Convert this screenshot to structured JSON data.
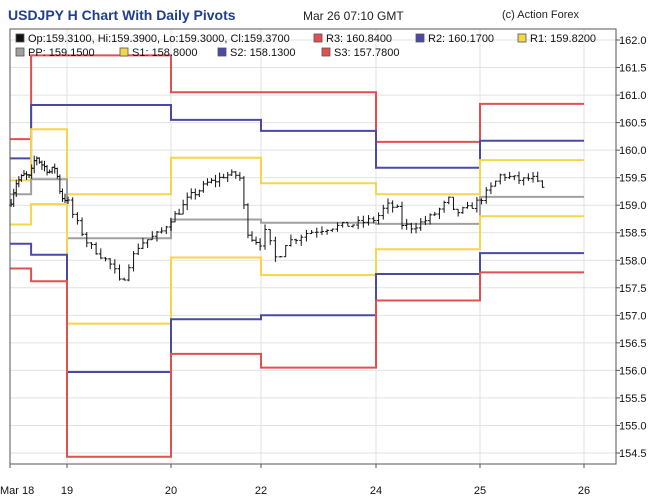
{
  "header": {
    "title": "USDJPY H Chart With Daily Pivots",
    "datetime": "Mar 26 07:10 GMT",
    "copyright": "(c) Action Forex"
  },
  "legend": [
    {
      "key": "ohlc",
      "label": "Op:159.3100, Hi:159.3900, Lo:159.3000, Cl:159.3700",
      "color": "#111111"
    },
    {
      "key": "r3",
      "label": "R3: 160.8400",
      "color": "#e05050"
    },
    {
      "key": "r2",
      "label": "R2: 160.1700",
      "color": "#4a4aa6"
    },
    {
      "key": "r1",
      "label": "R1: 159.8200",
      "color": "#f5d54a"
    },
    {
      "key": "pp",
      "label": "PP: 159.1500",
      "color": "#a0a0a0"
    },
    {
      "key": "s1",
      "label": "S1: 158.8000",
      "color": "#f5d54a"
    },
    {
      "key": "s2",
      "label": "S2: 158.1300",
      "color": "#4a4aa6"
    },
    {
      "key": "s3",
      "label": "S3: 157.7800",
      "color": "#e05050"
    }
  ],
  "chart_data": {
    "type": "line",
    "x_axis": {
      "ticks": [
        {
          "label": "Mar 18",
          "t": 0
        },
        {
          "label": "19",
          "t": 1
        },
        {
          "label": "20",
          "t": 2
        },
        {
          "label": "22",
          "t": 3
        },
        {
          "label": "24",
          "t": 4
        },
        {
          "label": "25",
          "t": 5
        },
        {
          "label": "26",
          "t": 6
        }
      ],
      "range": [
        0,
        6.3
      ]
    },
    "ylim": [
      154.3,
      162.2
    ],
    "y_ticks": [
      154.5,
      155.0,
      155.5,
      156.0,
      156.5,
      157.0,
      157.5,
      158.0,
      158.5,
      159.0,
      159.5,
      160.0,
      160.5,
      161.0,
      161.5,
      162.0
    ],
    "grid": true,
    "segments": [
      0,
      0.37,
      1,
      2,
      3,
      4,
      5,
      6,
      6.3
    ],
    "pivots": [
      {
        "name": "R3",
        "color": "#e05050",
        "values": [
          160.2,
          161.72,
          161.72,
          161.05,
          161.05,
          160.15,
          160.84
        ]
      },
      {
        "name": "R2",
        "color": "#4a4aa6",
        "values": [
          159.85,
          160.82,
          160.82,
          160.55,
          160.35,
          159.68,
          160.17
        ]
      },
      {
        "name": "R1",
        "color": "#f5d54a",
        "values": [
          159.45,
          160.38,
          159.2,
          159.86,
          159.4,
          159.2,
          159.82
        ]
      },
      {
        "name": "PP",
        "color": "#a0a0a0",
        "values": [
          159.2,
          159.47,
          158.4,
          158.74,
          158.68,
          158.66,
          159.15
        ]
      },
      {
        "name": "S1",
        "color": "#f5d54a",
        "values": [
          158.65,
          159.02,
          156.85,
          158.05,
          157.73,
          158.2,
          158.8
        ]
      },
      {
        "name": "S2",
        "color": "#4a4aa6",
        "values": [
          158.3,
          158.1,
          155.97,
          156.93,
          157.0,
          157.75,
          158.13
        ]
      },
      {
        "name": "S3",
        "color": "#e05050",
        "values": [
          157.85,
          157.62,
          154.43,
          156.3,
          156.05,
          157.27,
          157.78
        ]
      }
    ],
    "price_anchors": [
      [
        0.0,
        159.0
      ],
      [
        0.1,
        159.4
      ],
      [
        0.25,
        159.55
      ],
      [
        0.35,
        159.5
      ],
      [
        0.45,
        159.9
      ],
      [
        0.55,
        159.75
      ],
      [
        0.7,
        159.6
      ],
      [
        0.8,
        159.7
      ],
      [
        0.85,
        159.4
      ],
      [
        0.9,
        159.15
      ],
      [
        1.0,
        159.1
      ],
      [
        1.05,
        158.85
      ],
      [
        1.2,
        158.3
      ],
      [
        1.35,
        158.05
      ],
      [
        1.45,
        157.85
      ],
      [
        1.5,
        157.6
      ],
      [
        1.55,
        157.7
      ],
      [
        1.6,
        157.95
      ],
      [
        1.7,
        158.3
      ],
      [
        1.8,
        158.4
      ],
      [
        1.9,
        158.5
      ],
      [
        2.0,
        158.75
      ],
      [
        2.1,
        158.9
      ],
      [
        2.2,
        159.15
      ],
      [
        2.3,
        159.25
      ],
      [
        2.4,
        159.4
      ],
      [
        2.5,
        159.45
      ],
      [
        2.6,
        159.55
      ],
      [
        2.75,
        159.55
      ],
      [
        2.8,
        159.35
      ],
      [
        2.82,
        158.6
      ],
      [
        2.9,
        158.4
      ],
      [
        3.0,
        158.3
      ],
      [
        3.05,
        158.6
      ],
      [
        3.1,
        158.1
      ],
      [
        3.15,
        158.0
      ],
      [
        3.2,
        158.3
      ],
      [
        3.4,
        158.5
      ],
      [
        3.6,
        158.6
      ],
      [
        3.8,
        158.65
      ],
      [
        4.0,
        158.75
      ],
      [
        4.1,
        159.0
      ],
      [
        4.2,
        158.95
      ],
      [
        4.25,
        158.65
      ],
      [
        4.35,
        158.6
      ],
      [
        4.5,
        158.75
      ],
      [
        4.6,
        158.9
      ],
      [
        4.7,
        159.1
      ],
      [
        4.75,
        158.85
      ],
      [
        4.9,
        158.95
      ],
      [
        5.0,
        159.1
      ],
      [
        5.1,
        159.3
      ],
      [
        5.2,
        159.55
      ],
      [
        5.3,
        159.5
      ],
      [
        5.4,
        159.45
      ],
      [
        5.5,
        159.5
      ],
      [
        5.55,
        159.4
      ],
      [
        5.6,
        159.3
      ]
    ]
  }
}
